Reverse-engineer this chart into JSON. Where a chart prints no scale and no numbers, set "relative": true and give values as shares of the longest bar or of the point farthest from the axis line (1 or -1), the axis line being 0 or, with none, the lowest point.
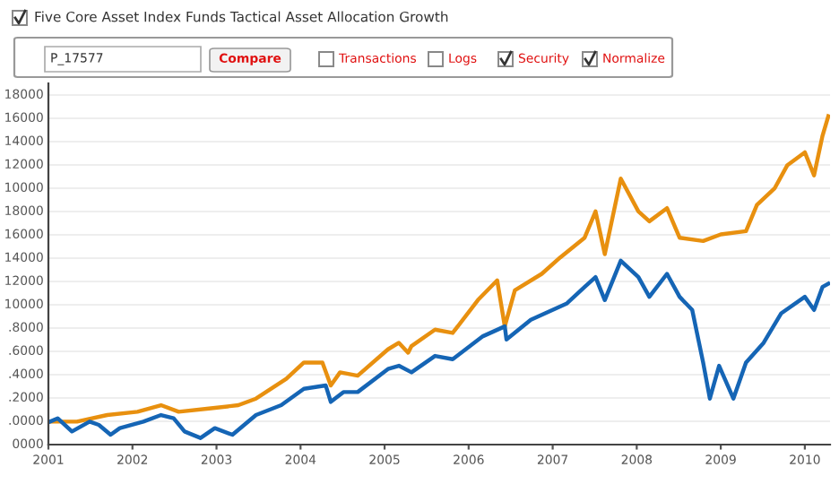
{
  "chart_data": {
    "type": "line",
    "title": "Five Core Asset Index Funds Tactical Asset Allocation Growth",
    "annotations": [
      "P_17577",
      "Compare",
      "Transactions",
      "Logs",
      "Security",
      "Normalize",
      "0000",
      ".0000",
      ".2000",
      ".4000",
      ".6000",
      ".8000",
      "10000",
      "12000",
      "14000",
      "16000",
      "18000",
      "10000",
      "12000",
      "14000",
      "16000",
      "18000"
    ],
    "relative": true,
    "series": [
      {
        "color": "#e8900f",
        "x": [
          2001.02,
          2001.34,
          2001.7,
          2002.06,
          2002.34,
          2002.55,
          2002.91,
          2003.26,
          2003.47,
          2003.83,
          2004.04,
          2004.26,
          2004.36,
          2004.47,
          2004.68,
          2005.04,
          2005.17,
          2005.28,
          2005.32,
          2005.6,
          2005.81,
          2006.11,
          2006.34,
          2006.43,
          2006.55,
          2006.87,
          2007.09,
          2007.38,
          2007.51,
          2007.62,
          2007.81,
          2008.02,
          2008.15,
          2008.36,
          2008.51,
          2008.79,
          2009.0,
          2009.3,
          2009.43,
          2009.64,
          2009.79,
          2010.0,
          2010.11,
          2010.21,
          2010.28
        ],
        "values": [
          0.07,
          0.07,
          0.09,
          0.1,
          0.12,
          0.1,
          0.11,
          0.12,
          0.14,
          0.2,
          0.25,
          0.25,
          0.18,
          0.22,
          0.21,
          0.29,
          0.31,
          0.28,
          0.3,
          0.35,
          0.34,
          0.44,
          0.5,
          0.36,
          0.47,
          0.52,
          0.57,
          0.63,
          0.71,
          0.58,
          0.81,
          0.71,
          0.68,
          0.72,
          0.63,
          0.62,
          0.64,
          0.65,
          0.73,
          0.78,
          0.85,
          0.89,
          0.82,
          0.94,
          1
        ]
      },
      {
        "color": "#1565b5",
        "x": [
          2001.02,
          2001.11,
          2001.28,
          2001.49,
          2001.6,
          2001.74,
          2001.85,
          2002.13,
          2002.34,
          2002.49,
          2002.62,
          2002.81,
          2002.98,
          2003.19,
          2003.47,
          2003.77,
          2004.04,
          2004.3,
          2004.36,
          2004.51,
          2004.68,
          2005.04,
          2005.17,
          2005.32,
          2005.6,
          2005.81,
          2006.17,
          2006.43,
          2006.45,
          2006.74,
          2007.17,
          2007.38,
          2007.51,
          2007.62,
          2007.81,
          2008.02,
          2008.15,
          2008.36,
          2008.51,
          2008.66,
          2008.79,
          2008.87,
          2008.98,
          2009.15,
          2009.3,
          2009.51,
          2009.72,
          2010.0,
          2010.11,
          2010.21,
          2010.28
        ],
        "values": [
          0.07,
          0.08,
          0.04,
          0.07,
          0.06,
          0.03,
          0.05,
          0.07,
          0.09,
          0.08,
          0.04,
          0.02,
          0.05,
          0.03,
          0.09,
          0.12,
          0.17,
          0.18,
          0.13,
          0.16,
          0.16,
          0.23,
          0.24,
          0.22,
          0.27,
          0.26,
          0.33,
          0.36,
          0.32,
          0.38,
          0.43,
          0.48,
          0.51,
          0.44,
          0.56,
          0.51,
          0.45,
          0.52,
          0.45,
          0.41,
          0.25,
          0.14,
          0.24,
          0.14,
          0.25,
          0.31,
          0.4,
          0.45,
          0.41,
          0.48,
          0.49
        ]
      }
    ],
    "xlim": [
      2001,
      2010.3
    ],
    "xticks": [
      2001,
      2002,
      2003,
      2004,
      2005,
      2006,
      2007,
      2008,
      2009,
      2010
    ],
    "grid": "y",
    "marker": "none",
    "line_style": "solid"
  }
}
